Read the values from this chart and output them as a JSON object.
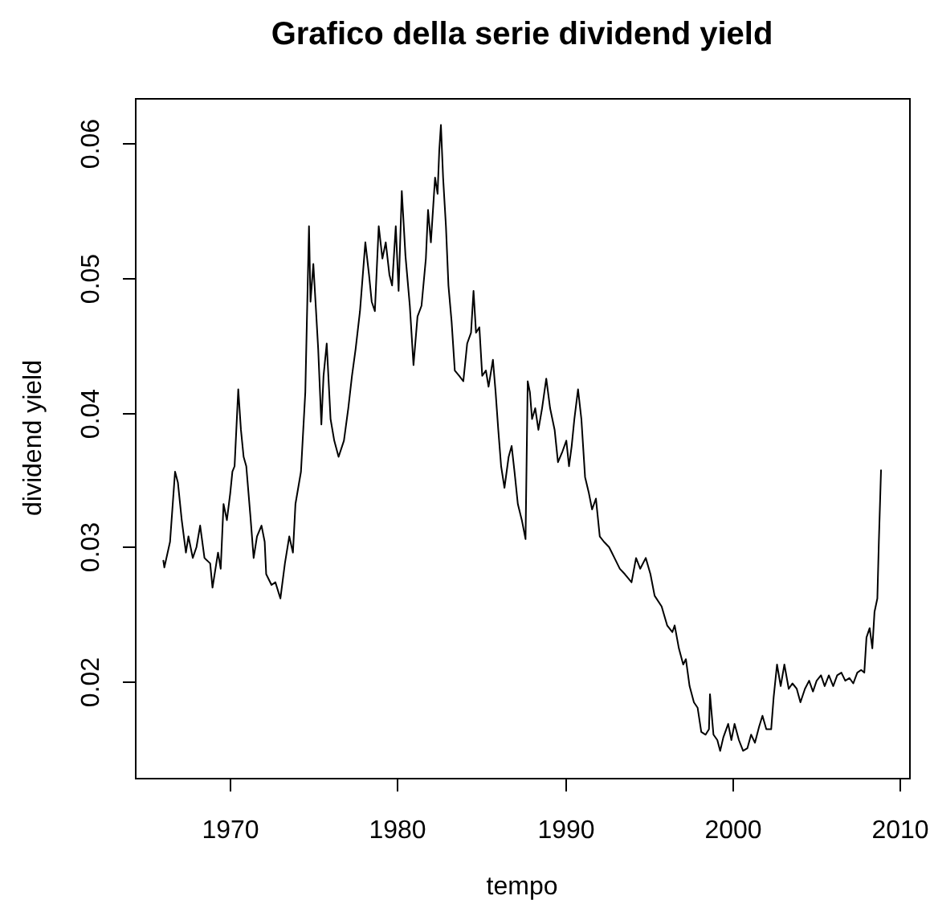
{
  "chart_data": {
    "type": "line",
    "title": "Grafico della serie dividend yield",
    "xlabel": "tempo",
    "ylabel": "dividend yield",
    "xlim": [
      1964.3,
      2010.6
    ],
    "xticks": [
      1970,
      1980,
      1990,
      2000,
      2010
    ],
    "ylim": [
      0.0129,
      0.0633
    ],
    "yticks": [
      0.02,
      0.03,
      0.04,
      0.05,
      0.06
    ],
    "x": [
      1966.0,
      1966.06,
      1966.4,
      1966.7,
      1966.87,
      1967.1,
      1967.35,
      1967.5,
      1967.76,
      1967.98,
      1968.2,
      1968.46,
      1968.8,
      1968.94,
      1969.27,
      1969.43,
      1969.6,
      1969.8,
      1970.0,
      1970.13,
      1970.26,
      1970.48,
      1970.64,
      1970.8,
      1970.96,
      1971.2,
      1971.4,
      1971.6,
      1971.87,
      1972.06,
      1972.15,
      1972.47,
      1972.7,
      1973.0,
      1973.27,
      1973.53,
      1973.75,
      1973.9,
      1974.23,
      1974.49,
      1974.71,
      1974.8,
      1974.97,
      1975.1,
      1975.26,
      1975.45,
      1975.58,
      1975.77,
      1976.0,
      1976.22,
      1976.48,
      1976.8,
      1977.06,
      1977.28,
      1977.5,
      1977.76,
      1978.08,
      1978.3,
      1978.46,
      1978.65,
      1978.88,
      1979.1,
      1979.3,
      1979.52,
      1979.68,
      1979.9,
      1980.07,
      1980.26,
      1980.48,
      1980.74,
      1980.96,
      1981.2,
      1981.44,
      1981.7,
      1981.83,
      1982.0,
      1982.25,
      1982.4,
      1982.5,
      1982.6,
      1982.73,
      1982.9,
      1983.05,
      1983.24,
      1983.43,
      1983.7,
      1983.94,
      1984.17,
      1984.4,
      1984.55,
      1984.7,
      1984.9,
      1985.07,
      1985.29,
      1985.45,
      1985.71,
      1985.87,
      1986.03,
      1986.2,
      1986.4,
      1986.65,
      1986.83,
      1987.0,
      1987.2,
      1987.44,
      1987.66,
      1987.79,
      1987.92,
      1988.05,
      1988.24,
      1988.43,
      1988.65,
      1988.9,
      1989.13,
      1989.4,
      1989.6,
      1989.87,
      1990.1,
      1990.26,
      1990.42,
      1990.58,
      1990.8,
      1991.0,
      1991.22,
      1991.45,
      1991.64,
      1991.87,
      1992.1,
      1992.35,
      1992.66,
      1992.98,
      1993.3,
      1993.6,
      1994.0,
      1994.27,
      1994.52,
      1994.85,
      1995.13,
      1995.38,
      1995.8,
      1996.13,
      1996.44,
      1996.58,
      1996.83,
      1997.09,
      1997.25,
      1997.47,
      1997.73,
      1997.95,
      1998.17,
      1998.43,
      1998.63,
      1998.69,
      1998.9,
      1999.13,
      1999.3,
      1999.49,
      1999.78,
      1999.97,
      2000.16,
      2000.42,
      2000.67,
      2000.93,
      2001.15,
      2001.38,
      2001.63,
      2001.83,
      2002.06,
      2002.35,
      2002.5,
      2002.7,
      2002.92,
      2003.14,
      2003.4,
      2003.62,
      2003.88,
      2004.1,
      2004.37,
      2004.62,
      2004.85,
      2005.07,
      2005.33,
      2005.55,
      2005.8,
      2006.06,
      2006.3,
      2006.55,
      2006.78,
      2007.03,
      2007.26,
      2007.5,
      2007.73,
      2007.92,
      2008.05,
      2008.24,
      2008.4,
      2008.53,
      2008.7,
      2008.79,
      2008.92
    ],
    "series": [
      {
        "color": "#000000",
        "values": [
          0.029,
          0.0285,
          0.0304,
          0.0356,
          0.0348,
          0.032,
          0.0296,
          0.0308,
          0.0292,
          0.03,
          0.0316,
          0.0292,
          0.0288,
          0.027,
          0.0296,
          0.0284,
          0.0332,
          0.032,
          0.034,
          0.0356,
          0.036,
          0.0417,
          0.0387,
          0.0367,
          0.036,
          0.0324,
          0.0292,
          0.0308,
          0.0316,
          0.0304,
          0.028,
          0.0272,
          0.0274,
          0.0262,
          0.0288,
          0.0308,
          0.0296,
          0.0332,
          0.0356,
          0.0415,
          0.0538,
          0.0482,
          0.051,
          0.0482,
          0.0447,
          0.0391,
          0.0427,
          0.0451,
          0.0395,
          0.0379,
          0.0367,
          0.0379,
          0.0403,
          0.0427,
          0.0447,
          0.0475,
          0.0526,
          0.0502,
          0.0482,
          0.0475,
          0.0538,
          0.0514,
          0.0526,
          0.0502,
          0.0494,
          0.0538,
          0.049,
          0.0564,
          0.0516,
          0.0479,
          0.0435,
          0.0471,
          0.0479,
          0.0514,
          0.055,
          0.0526,
          0.0574,
          0.0562,
          0.0594,
          0.0613,
          0.0574,
          0.0538,
          0.0494,
          0.0467,
          0.0431,
          0.0427,
          0.0423,
          0.0451,
          0.0459,
          0.049,
          0.0459,
          0.0463,
          0.0427,
          0.0431,
          0.0419,
          0.0439,
          0.0415,
          0.0387,
          0.036,
          0.0344,
          0.0367,
          0.0375,
          0.0356,
          0.0332,
          0.032,
          0.0306,
          0.0423,
          0.0415,
          0.0395,
          0.0403,
          0.0387,
          0.0403,
          0.0425,
          0.0403,
          0.0387,
          0.0363,
          0.0371,
          0.0379,
          0.036,
          0.0375,
          0.0395,
          0.0417,
          0.0395,
          0.0352,
          0.034,
          0.0328,
          0.0336,
          0.0308,
          0.0304,
          0.03,
          0.0292,
          0.0284,
          0.028,
          0.0274,
          0.0292,
          0.0284,
          0.0292,
          0.028,
          0.0264,
          0.0256,
          0.0242,
          0.0237,
          0.0242,
          0.0225,
          0.0213,
          0.0217,
          0.0197,
          0.0185,
          0.0181,
          0.0163,
          0.0161,
          0.0165,
          0.0191,
          0.0161,
          0.0157,
          0.0149,
          0.0159,
          0.0169,
          0.0157,
          0.0169,
          0.0157,
          0.0149,
          0.0151,
          0.0161,
          0.0155,
          0.0167,
          0.0175,
          0.0165,
          0.0165,
          0.0189,
          0.0213,
          0.0197,
          0.0213,
          0.0195,
          0.0199,
          0.0195,
          0.0185,
          0.0195,
          0.0201,
          0.0193,
          0.0201,
          0.0205,
          0.0197,
          0.0205,
          0.0197,
          0.0205,
          0.0207,
          0.0201,
          0.0203,
          0.0199,
          0.0207,
          0.0209,
          0.0207,
          0.0233,
          0.024,
          0.0225,
          0.0252,
          0.0262,
          0.0304,
          0.0357
        ]
      }
    ]
  }
}
